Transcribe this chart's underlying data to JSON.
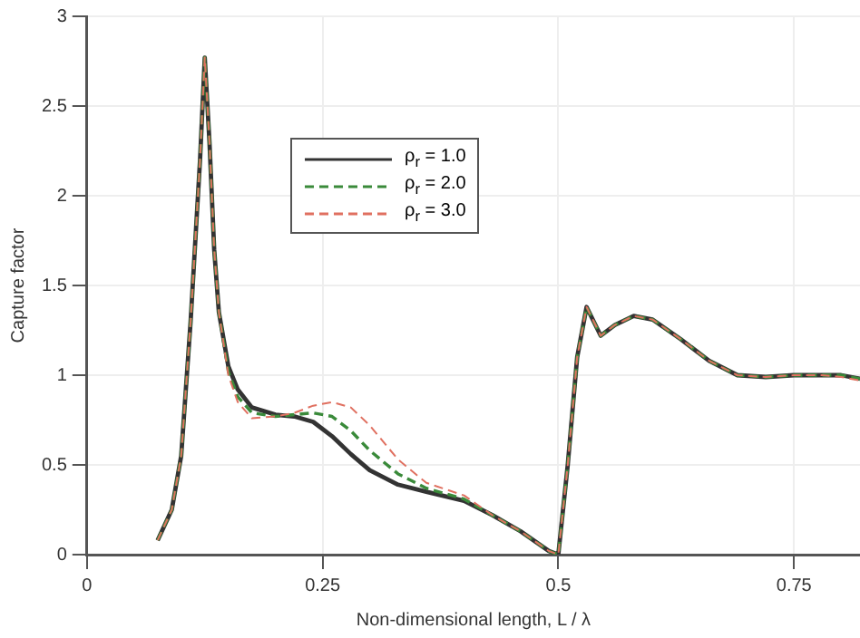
{
  "chart_data": {
    "type": "line",
    "xlabel": "Non-dimensional length, L / λ",
    "ylabel": "Capture factor",
    "x": [
      0.075,
      0.09,
      0.1,
      0.11,
      0.12,
      0.125,
      0.13,
      0.135,
      0.14,
      0.15,
      0.16,
      0.175,
      0.2,
      0.22,
      0.24,
      0.26,
      0.28,
      0.3,
      0.33,
      0.36,
      0.4,
      0.43,
      0.46,
      0.49,
      0.5,
      0.51,
      0.52,
      0.53,
      0.545,
      0.56,
      0.58,
      0.6,
      0.63,
      0.66,
      0.69,
      0.72,
      0.75,
      0.78,
      0.8,
      0.82
    ],
    "series": [
      {
        "name": "ρ$_{r}$ = 1.0",
        "color": "#333333",
        "line_style": "solid",
        "values": [
          0.08,
          0.25,
          0.55,
          1.3,
          2.2,
          2.77,
          2.3,
          1.7,
          1.35,
          1.05,
          0.92,
          0.82,
          0.78,
          0.77,
          0.74,
          0.66,
          0.56,
          0.47,
          0.39,
          0.35,
          0.3,
          0.22,
          0.13,
          0.02,
          0,
          0.5,
          1.1,
          1.38,
          1.22,
          1.28,
          1.33,
          1.31,
          1.2,
          1.08,
          1.0,
          0.99,
          1.0,
          1.0,
          1.0,
          0.98
        ]
      },
      {
        "name": "ρ$_{r}$ = 2.0",
        "color": "#3a8a3a",
        "line_style": "dashed",
        "values": [
          0.08,
          0.25,
          0.55,
          1.3,
          2.2,
          2.77,
          2.3,
          1.7,
          1.35,
          1.02,
          0.88,
          0.79,
          0.77,
          0.78,
          0.79,
          0.77,
          0.69,
          0.58,
          0.45,
          0.37,
          0.31,
          0.22,
          0.13,
          0.02,
          0,
          0.5,
          1.1,
          1.38,
          1.22,
          1.28,
          1.33,
          1.31,
          1.2,
          1.08,
          1.0,
          0.99,
          1.0,
          1.0,
          1.0,
          0.98
        ]
      },
      {
        "name": "ρ$_{r}$ = 3.0",
        "color": "#e07060",
        "line_style": "dashed",
        "values": [
          0.08,
          0.25,
          0.55,
          1.3,
          2.2,
          2.77,
          2.3,
          1.7,
          1.35,
          1.0,
          0.85,
          0.76,
          0.77,
          0.79,
          0.83,
          0.85,
          0.82,
          0.72,
          0.53,
          0.4,
          0.33,
          0.22,
          0.13,
          0.02,
          0,
          0.5,
          1.1,
          1.38,
          1.22,
          1.28,
          1.33,
          1.31,
          1.2,
          1.08,
          1.0,
          0.99,
          1.0,
          1.0,
          0.99,
          0.97
        ]
      }
    ],
    "xlim": [
      0,
      0.82
    ],
    "xticks": [
      0,
      0.25,
      0.5,
      0.75
    ],
    "ylim": [
      0,
      3
    ],
    "yticks": [
      0,
      0.5,
      1,
      1.5,
      2,
      2.5,
      3
    ],
    "grid": true,
    "legend": "top left",
    "marker": "none"
  }
}
